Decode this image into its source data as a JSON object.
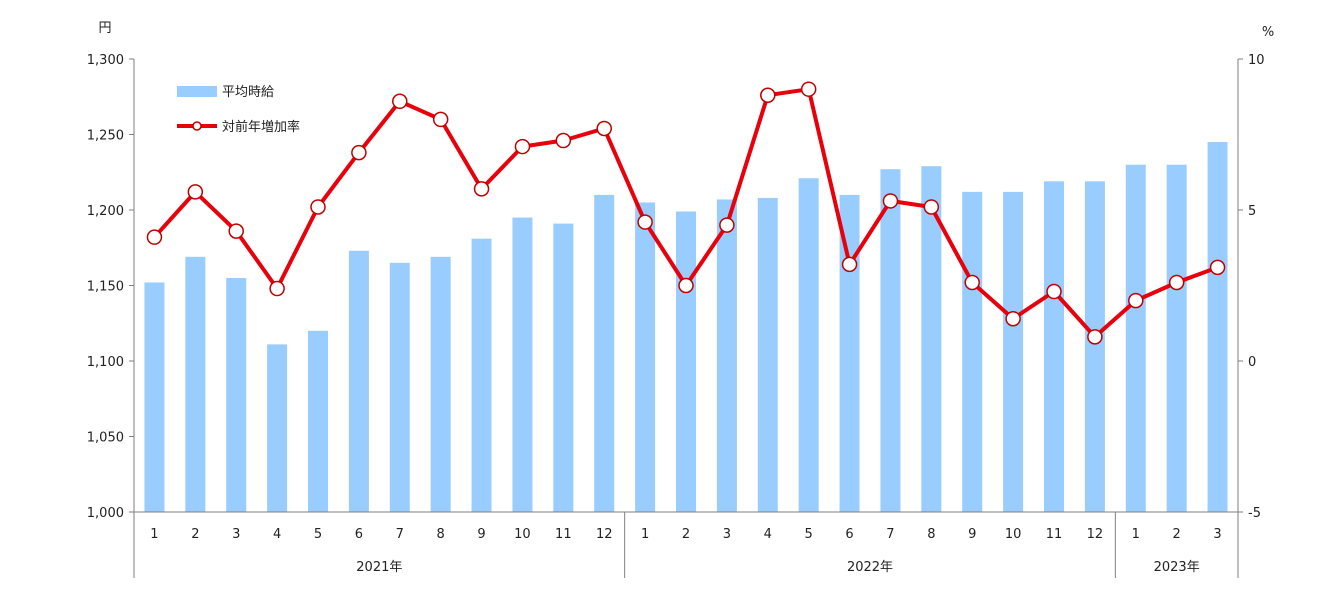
{
  "chart_data": {
    "type": "bar",
    "left_axis": {
      "unit": "円",
      "ylim": [
        1000,
        1300
      ],
      "ticks": [
        1000,
        1050,
        1100,
        1150,
        1200,
        1250,
        1300
      ],
      "tick_labels": [
        "1,000",
        "1,050",
        "1,100",
        "1,150",
        "1,200",
        "1,250",
        "1,300"
      ]
    },
    "right_axis": {
      "unit": "%",
      "ylim": [
        -5,
        10
      ],
      "ticks": [
        -5,
        0,
        5,
        10
      ],
      "tick_labels": [
        "-5",
        "0",
        "5",
        "10"
      ]
    },
    "categories": [
      "1",
      "2",
      "3",
      "4",
      "5",
      "6",
      "7",
      "8",
      "9",
      "10",
      "11",
      "12",
      "1",
      "2",
      "3",
      "4",
      "5",
      "6",
      "7",
      "8",
      "9",
      "10",
      "11",
      "12",
      "1",
      "2",
      "3"
    ],
    "year_groups": [
      {
        "label": "2021年",
        "count": 12
      },
      {
        "label": "2022年",
        "count": 12
      },
      {
        "label": "2023年",
        "count": 3
      }
    ],
    "series": [
      {
        "name": "平均時給",
        "type": "bar",
        "axis": "left",
        "color": "#99ccff",
        "values": [
          1152,
          1169,
          1155,
          1111,
          1120,
          1173,
          1165,
          1169,
          1181,
          1195,
          1191,
          1210,
          1205,
          1199,
          1207,
          1208,
          1221,
          1210,
          1227,
          1229,
          1212,
          1212,
          1219,
          1219,
          1230,
          1230,
          1245
        ]
      },
      {
        "name": "対前年増加率",
        "type": "line",
        "axis": "right",
        "color": "#e8000b",
        "values": [
          4.1,
          5.6,
          4.3,
          2.4,
          5.1,
          6.9,
          8.6,
          8.0,
          5.7,
          7.1,
          7.3,
          7.7,
          4.6,
          2.5,
          4.5,
          8.8,
          9.0,
          3.2,
          5.3,
          5.1,
          2.6,
          1.4,
          2.3,
          0.8,
          2.0,
          2.6,
          3.1
        ]
      }
    ],
    "legend": "top-left",
    "grid": false
  }
}
